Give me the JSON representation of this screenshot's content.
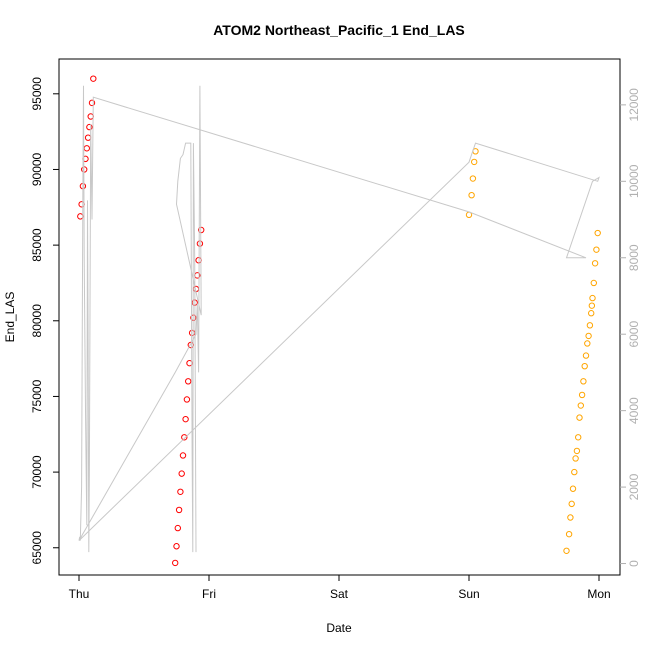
{
  "chart_data": {
    "type": "scatter",
    "title": "ATOM2 Northeast_Pacific_1 End_LAS",
    "xlabel": "Date",
    "ylabel": "End_LAS",
    "x_ticks": [
      "Thu",
      "Fri",
      "Sat",
      "Sun",
      "Mon"
    ],
    "ylim": [
      63200,
      97300
    ],
    "y_ticks": [
      65000,
      70000,
      75000,
      80000,
      85000,
      90000,
      95000
    ],
    "y2lim": [
      -300,
      13200
    ],
    "y2_ticks": [
      0,
      2000,
      4000,
      6000,
      8000,
      10000,
      12000
    ],
    "series": [
      {
        "color": "#ff0000",
        "marker": "open-circle",
        "points": [
          [
            0.01,
            86900
          ],
          [
            0.02,
            87700
          ],
          [
            0.03,
            88900
          ],
          [
            0.04,
            90000
          ],
          [
            0.05,
            90700
          ],
          [
            0.06,
            91400
          ],
          [
            0.07,
            92100
          ],
          [
            0.08,
            92800
          ],
          [
            0.09,
            93500
          ],
          [
            0.1,
            94400
          ],
          [
            0.11,
            96000
          ],
          [
            0.74,
            64000
          ],
          [
            0.75,
            65100
          ],
          [
            0.76,
            66300
          ],
          [
            0.77,
            67500
          ],
          [
            0.78,
            68700
          ],
          [
            0.79,
            69900
          ],
          [
            0.8,
            71100
          ],
          [
            0.81,
            72300
          ],
          [
            0.82,
            73500
          ],
          [
            0.83,
            74800
          ],
          [
            0.84,
            76000
          ],
          [
            0.85,
            77200
          ],
          [
            0.86,
            78400
          ],
          [
            0.87,
            79200
          ],
          [
            0.88,
            80200
          ],
          [
            0.89,
            81200
          ],
          [
            0.9,
            82100
          ],
          [
            0.91,
            83000
          ],
          [
            0.92,
            84000
          ],
          [
            0.93,
            85100
          ],
          [
            0.94,
            86000
          ]
        ]
      },
      {
        "color": "#ffa500",
        "marker": "open-circle",
        "points": [
          [
            3.0,
            87000
          ],
          [
            3.02,
            88300
          ],
          [
            3.03,
            89400
          ],
          [
            3.04,
            90500
          ],
          [
            3.05,
            91200
          ],
          [
            3.75,
            64800
          ],
          [
            3.77,
            65900
          ],
          [
            3.78,
            67000
          ],
          [
            3.79,
            67900
          ],
          [
            3.8,
            68900
          ],
          [
            3.81,
            70000
          ],
          [
            3.82,
            70900
          ],
          [
            3.83,
            71400
          ],
          [
            3.84,
            72300
          ],
          [
            3.85,
            73600
          ],
          [
            3.86,
            74400
          ],
          [
            3.87,
            75100
          ],
          [
            3.88,
            76000
          ],
          [
            3.89,
            77000
          ],
          [
            3.9,
            77700
          ],
          [
            3.91,
            78500
          ],
          [
            3.92,
            79000
          ],
          [
            3.93,
            79700
          ],
          [
            3.94,
            80500
          ],
          [
            3.945,
            81000
          ],
          [
            3.95,
            81500
          ],
          [
            3.96,
            82500
          ],
          [
            3.97,
            83800
          ],
          [
            3.98,
            84700
          ],
          [
            3.99,
            85800
          ]
        ]
      },
      {
        "color": "#c8c8c8",
        "marker": "line",
        "axis": "right",
        "points": [
          [
            0.0,
            600
          ],
          [
            0.005,
            700
          ],
          [
            0.01,
            600
          ],
          [
            0.02,
            2000
          ],
          [
            0.03,
            10000
          ],
          [
            0.035,
            12500
          ],
          [
            0.04,
            8000
          ],
          [
            0.05,
            4000
          ],
          [
            0.06,
            1000
          ],
          [
            0.065,
            9500
          ],
          [
            0.07,
            6000
          ],
          [
            0.075,
            300
          ],
          [
            0.08,
            2500
          ],
          [
            0.09,
            11500
          ],
          [
            0.1,
            9000
          ],
          [
            0.11,
            12200
          ],
          [
            3.0,
            9200
          ],
          [
            3.9,
            8000
          ],
          [
            3.75,
            8000
          ],
          [
            3.95,
            10000
          ],
          [
            4.0,
            10100
          ],
          [
            3.99,
            10000
          ],
          [
            3.05,
            11000
          ],
          [
            3.0,
            10500
          ],
          [
            0.0,
            600
          ],
          [
            0.74,
            5000
          ],
          [
            0.9,
            6000
          ],
          [
            0.91,
            6800
          ],
          [
            0.92,
            5000
          ],
          [
            0.93,
            12500
          ],
          [
            0.94,
            6500
          ],
          [
            0.75,
            9400
          ],
          [
            0.76,
            10000
          ],
          [
            0.78,
            10600
          ],
          [
            0.8,
            10700
          ],
          [
            0.82,
            11000
          ],
          [
            0.84,
            11000
          ],
          [
            0.86,
            11000
          ],
          [
            0.87,
            3000
          ],
          [
            0.875,
            300
          ],
          [
            0.88,
            11000
          ],
          [
            0.89,
            8000
          ],
          [
            0.9,
            300
          ]
        ]
      }
    ]
  }
}
